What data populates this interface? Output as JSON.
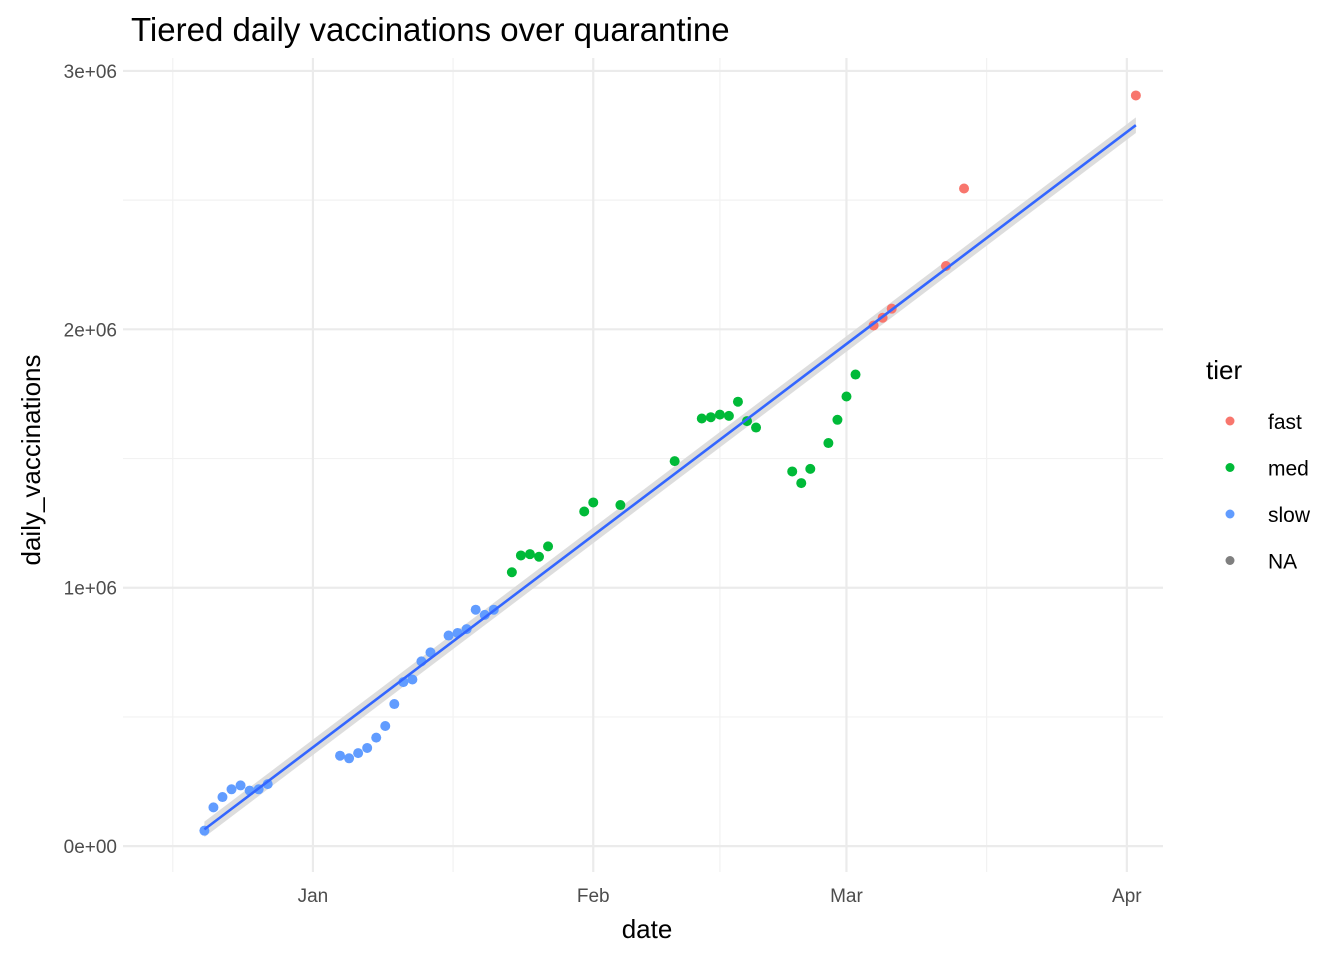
{
  "chart_data": {
    "type": "scatter",
    "title": "Tiered daily vaccinations over quarantine",
    "xlabel": "date",
    "ylabel": "daily_vaccinations",
    "x_type": "date",
    "xlim": [
      "2020-12-11",
      "2021-04-05"
    ],
    "ylim": [
      -100000,
      3050000
    ],
    "x_ticks": [
      {
        "date": "2021-01-01",
        "label": "Jan"
      },
      {
        "date": "2021-02-01",
        "label": "Feb"
      },
      {
        "date": "2021-03-01",
        "label": "Mar"
      },
      {
        "date": "2021-04-01",
        "label": "Apr"
      }
    ],
    "y_ticks": [
      {
        "value": 0,
        "label": "0e+00"
      },
      {
        "value": 1000000,
        "label": "1e+06"
      },
      {
        "value": 2000000,
        "label": "2e+06"
      },
      {
        "value": 3000000,
        "label": "3e+06"
      }
    ],
    "grid": true,
    "legend": {
      "title": "tier",
      "position": "right",
      "entries": [
        {
          "label": "fast",
          "color": "#F8766D"
        },
        {
          "label": "med",
          "color": "#00BA38"
        },
        {
          "label": "slow",
          "color": "#619CFF"
        },
        {
          "label": "NA",
          "color": "#7F7F7F"
        }
      ]
    },
    "trend": {
      "method": "linear",
      "color": "#3366FF",
      "band_color": "#d9d9d9",
      "start": {
        "x": "2020-12-20",
        "y": 65000
      },
      "end": {
        "x": "2021-04-02",
        "y": 2790000
      },
      "band_halfwidth": 30000
    },
    "series": [
      {
        "name": "slow",
        "color": "#619CFF",
        "points": [
          {
            "x": "2020-12-20",
            "y": 60000
          },
          {
            "x": "2020-12-21",
            "y": 150000
          },
          {
            "x": "2020-12-22",
            "y": 190000
          },
          {
            "x": "2020-12-23",
            "y": 220000
          },
          {
            "x": "2020-12-24",
            "y": 235000
          },
          {
            "x": "2020-12-25",
            "y": 215000
          },
          {
            "x": "2020-12-26",
            "y": 220000
          },
          {
            "x": "2020-12-27",
            "y": 240000
          },
          {
            "x": "2021-01-04",
            "y": 350000
          },
          {
            "x": "2021-01-05",
            "y": 340000
          },
          {
            "x": "2021-01-06",
            "y": 360000
          },
          {
            "x": "2021-01-07",
            "y": 380000
          },
          {
            "x": "2021-01-08",
            "y": 420000
          },
          {
            "x": "2021-01-09",
            "y": 465000
          },
          {
            "x": "2021-01-10",
            "y": 550000
          },
          {
            "x": "2021-01-11",
            "y": 635000
          },
          {
            "x": "2021-01-12",
            "y": 645000
          },
          {
            "x": "2021-01-13",
            "y": 715000
          },
          {
            "x": "2021-01-14",
            "y": 750000
          },
          {
            "x": "2021-01-16",
            "y": 815000
          },
          {
            "x": "2021-01-17",
            "y": 825000
          },
          {
            "x": "2021-01-18",
            "y": 840000
          },
          {
            "x": "2021-01-19",
            "y": 915000
          },
          {
            "x": "2021-01-20",
            "y": 895000
          },
          {
            "x": "2021-01-21",
            "y": 915000
          }
        ]
      },
      {
        "name": "med",
        "color": "#00BA38",
        "points": [
          {
            "x": "2021-01-23",
            "y": 1060000
          },
          {
            "x": "2021-01-24",
            "y": 1125000
          },
          {
            "x": "2021-01-25",
            "y": 1130000
          },
          {
            "x": "2021-01-26",
            "y": 1120000
          },
          {
            "x": "2021-01-27",
            "y": 1160000
          },
          {
            "x": "2021-01-31",
            "y": 1295000
          },
          {
            "x": "2021-02-01",
            "y": 1330000
          },
          {
            "x": "2021-02-04",
            "y": 1320000
          },
          {
            "x": "2021-02-10",
            "y": 1490000
          },
          {
            "x": "2021-02-13",
            "y": 1655000
          },
          {
            "x": "2021-02-14",
            "y": 1660000
          },
          {
            "x": "2021-02-15",
            "y": 1670000
          },
          {
            "x": "2021-02-16",
            "y": 1665000
          },
          {
            "x": "2021-02-17",
            "y": 1720000
          },
          {
            "x": "2021-02-18",
            "y": 1645000
          },
          {
            "x": "2021-02-19",
            "y": 1620000
          },
          {
            "x": "2021-02-23",
            "y": 1450000
          },
          {
            "x": "2021-02-24",
            "y": 1405000
          },
          {
            "x": "2021-02-25",
            "y": 1460000
          },
          {
            "x": "2021-02-27",
            "y": 1560000
          },
          {
            "x": "2021-02-28",
            "y": 1650000
          },
          {
            "x": "2021-03-01",
            "y": 1740000
          },
          {
            "x": "2021-03-02",
            "y": 1825000
          }
        ]
      },
      {
        "name": "fast",
        "color": "#F8766D",
        "points": [
          {
            "x": "2021-03-04",
            "y": 2015000
          },
          {
            "x": "2021-03-05",
            "y": 2045000
          },
          {
            "x": "2021-03-06",
            "y": 2080000
          },
          {
            "x": "2021-03-12",
            "y": 2245000
          },
          {
            "x": "2021-03-14",
            "y": 2545000
          },
          {
            "x": "2021-04-02",
            "y": 2905000
          }
        ]
      }
    ]
  }
}
